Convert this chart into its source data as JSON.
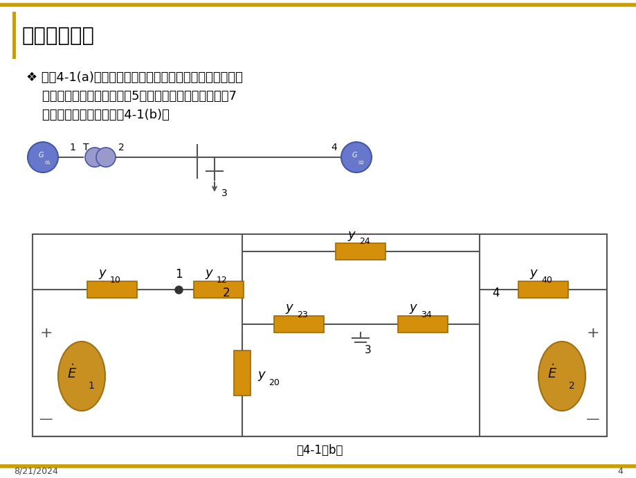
{
  "bg_color": "#ffffff",
  "border_color": "#c8a000",
  "title": "一、节点方程",
  "footer_date": "8/21/2024",
  "footer_page": "4",
  "caption": "图4-1（b）",
  "box_color": "#d4900a",
  "box_edge_color": "#a06800",
  "line_color": "#555555",
  "blue_fill": "#6677cc",
  "blue_edge": "#4455aa",
  "blue_light": "#9999cc",
  "source_fill": "#c89020",
  "source_edge": "#a07010",
  "golden_bar": "#c8a000",
  "text_color": "#000000",
  "body_line1": "❖ 在图4-1(a)中，略去变压器的励磁功率和线路电容，负荷",
  "body_line2": "    用阻抗表示，可得到一个有5个节点（包括零电位点）和7",
  "body_line3": "    条支路的等值网络，如图4-1(b)。"
}
